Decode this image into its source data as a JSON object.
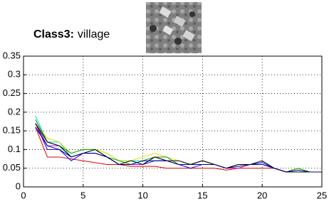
{
  "chart_data": {
    "type": "line",
    "title_bold": "Class3:",
    "title": "village",
    "x": [
      1,
      2,
      3,
      4,
      5,
      6,
      7,
      8,
      9,
      10,
      11,
      12,
      13,
      14,
      15,
      16,
      17,
      18,
      19,
      20,
      21,
      22,
      23,
      24,
      25
    ],
    "series": [
      {
        "color": "#00e0e0",
        "values": [
          0.19,
          0.12,
          0.12,
          0.08,
          0.09,
          0.1,
          0.09,
          0.07,
          0.07,
          0.07,
          0.08,
          0.07,
          0.06,
          0.06,
          0.07,
          0.06,
          0.05,
          0.06,
          0.06,
          0.06,
          0.05,
          0.04,
          0.04,
          0.04,
          0.04
        ]
      },
      {
        "color": "#e0e000",
        "values": [
          0.17,
          0.13,
          0.12,
          0.09,
          0.1,
          0.1,
          0.09,
          0.07,
          0.07,
          0.08,
          0.09,
          0.08,
          0.07,
          0.06,
          0.07,
          0.06,
          0.05,
          0.06,
          0.06,
          0.06,
          0.05,
          0.04,
          0.04,
          0.04,
          0.04
        ]
      },
      {
        "color": "#00a000",
        "values": [
          0.18,
          0.12,
          0.11,
          0.09,
          0.1,
          0.1,
          0.08,
          0.07,
          0.06,
          0.07,
          0.08,
          0.08,
          0.06,
          0.06,
          0.07,
          0.06,
          0.05,
          0.06,
          0.06,
          0.06,
          0.05,
          0.04,
          0.05,
          0.04,
          0.04
        ]
      },
      {
        "color": "#e00000",
        "values": [
          0.16,
          0.08,
          0.08,
          0.075,
          0.07,
          0.065,
          0.06,
          0.06,
          0.055,
          0.055,
          0.055,
          0.05,
          0.05,
          0.05,
          0.05,
          0.05,
          0.045,
          0.05,
          0.05,
          0.05,
          0.05,
          0.04,
          0.04,
          0.04,
          0.04
        ]
      },
      {
        "color": "#0000ff",
        "values": [
          0.17,
          0.1,
          0.1,
          0.07,
          0.09,
          0.09,
          0.08,
          0.06,
          0.06,
          0.06,
          0.07,
          0.07,
          0.06,
          0.05,
          0.06,
          0.06,
          0.05,
          0.06,
          0.06,
          0.065,
          0.05,
          0.04,
          0.04,
          0.04,
          0.04
        ]
      },
      {
        "color": "#d000d0",
        "values": [
          0.17,
          0.11,
          0.11,
          0.08,
          0.09,
          0.09,
          0.08,
          0.06,
          0.06,
          0.06,
          0.08,
          0.07,
          0.06,
          0.06,
          0.07,
          0.06,
          0.05,
          0.05,
          0.06,
          0.06,
          0.05,
          0.04,
          0.04,
          0.04,
          0.04
        ]
      },
      {
        "color": "#000000",
        "values": [
          0.17,
          0.12,
          0.11,
          0.08,
          0.09,
          0.1,
          0.08,
          0.06,
          0.07,
          0.06,
          0.08,
          0.07,
          0.07,
          0.06,
          0.07,
          0.06,
          0.05,
          0.06,
          0.06,
          0.07,
          0.05,
          0.04,
          0.04,
          0.04,
          0.04
        ]
      },
      {
        "color": "#000080",
        "values": [
          0.16,
          0.11,
          0.1,
          0.08,
          0.09,
          0.09,
          0.08,
          0.06,
          0.06,
          0.07,
          0.07,
          0.07,
          0.06,
          0.06,
          0.06,
          0.06,
          0.05,
          0.055,
          0.06,
          0.06,
          0.05,
          0.04,
          0.045,
          0.04,
          0.04
        ]
      }
    ],
    "xlim": [
      0,
      25
    ],
    "xticks": [
      0,
      5,
      10,
      15,
      20,
      25
    ],
    "ylim": [
      0,
      0.35
    ],
    "yticks": [
      0,
      0.05,
      0.1,
      0.15,
      0.2,
      0.25,
      0.3,
      0.35
    ],
    "grid": true
  }
}
